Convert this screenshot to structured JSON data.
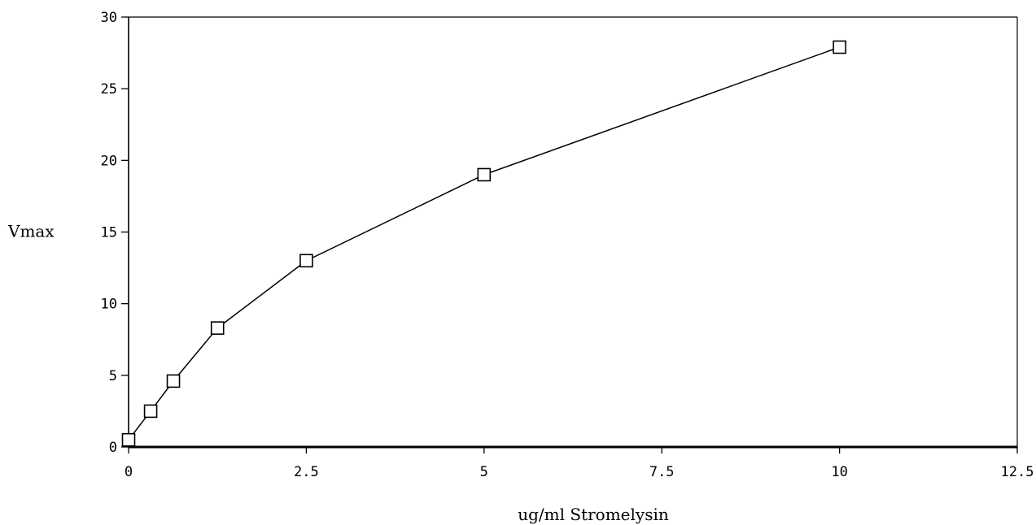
{
  "chart_data": {
    "type": "line",
    "title": "",
    "xlabel": "ug/ml Stromelysin",
    "ylabel": "Vmax",
    "xlim": [
      0,
      12.5
    ],
    "ylim": [
      0,
      30
    ],
    "x_ticks": [
      "0",
      "2.5",
      "5",
      "7.5",
      "10",
      "12.5"
    ],
    "y_ticks": [
      "0",
      "5",
      "10",
      "15",
      "20",
      "25",
      "30"
    ],
    "grid": false,
    "legend": "none",
    "marker": "open-square",
    "line_color": "#000000",
    "series": [
      {
        "x": [
          0,
          0.31,
          0.63,
          1.25,
          2.5,
          5,
          10
        ],
        "y": [
          0.5,
          2.5,
          4.6,
          8.3,
          13,
          19,
          27.9
        ]
      }
    ]
  }
}
